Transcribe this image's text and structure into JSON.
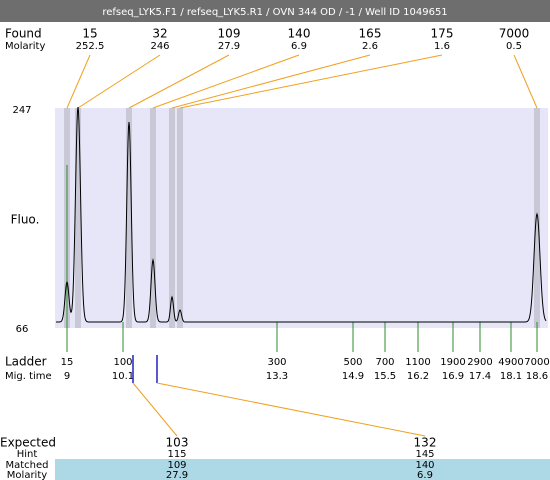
{
  "header": {
    "title": "refseq_LYK5.F1 / refseq_LYK5.R1 / OVN 344 OD / -1 / Well ID 1049651"
  },
  "found": {
    "label": "Found",
    "molarity_label": "Molarity",
    "sizes": [
      "15",
      "32",
      "109",
      "140",
      "165",
      "175",
      "7000"
    ],
    "molarity": [
      "252.5",
      "246",
      "27.9",
      "6.9",
      "2.6",
      "1.6",
      "0.5"
    ]
  },
  "axis": {
    "label": "Fluo.",
    "top": "247",
    "bottom": "66"
  },
  "ladder": {
    "label": "Ladder",
    "time_label": "Mig. time",
    "sizes": [
      "15",
      "100",
      "300",
      "500",
      "700",
      "1100",
      "1900",
      "2900",
      "4900",
      "7000"
    ],
    "times": [
      "9",
      "10.1",
      "13.3",
      "14.9",
      "15.5",
      "16.2",
      "16.9",
      "17.4",
      "18.1",
      "18.6"
    ]
  },
  "expected": {
    "label": "Expected",
    "hint_label": "Hint",
    "matched_label": "Matched",
    "molarity_label": "Molarity",
    "values": [
      "103",
      "132"
    ],
    "hint": [
      "115",
      "145"
    ],
    "matched": [
      "109",
      "140"
    ],
    "molarity": [
      "27.9",
      "6.9"
    ]
  }
}
